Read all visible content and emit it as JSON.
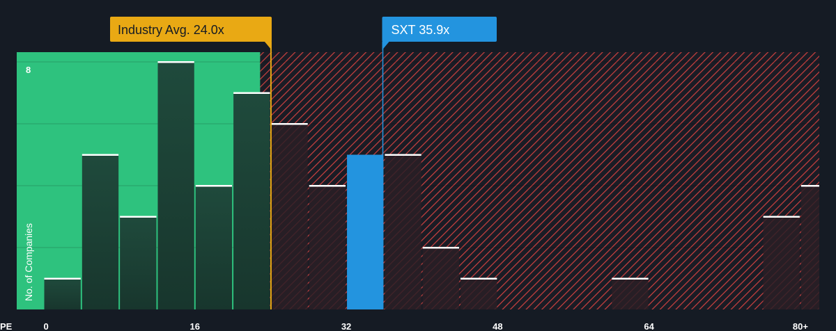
{
  "chart_data": {
    "type": "bar",
    "x_axis_prefix": "PE",
    "xlabel": "",
    "ylabel": "No. of Companies",
    "y_top_tick": "8",
    "ylim": [
      0,
      8.3
    ],
    "xlim": [
      0,
      82
    ],
    "x_ticks": [
      {
        "value": 0,
        "label": "0"
      },
      {
        "value": 16,
        "label": "16"
      },
      {
        "value": 32,
        "label": "32"
      },
      {
        "value": 48,
        "label": "48"
      },
      {
        "value": 64,
        "label": "64"
      },
      {
        "value": 80,
        "label": "80+"
      }
    ],
    "bins": [
      {
        "start": 0,
        "end": 4,
        "count": 1
      },
      {
        "start": 4,
        "end": 8,
        "count": 5
      },
      {
        "start": 8,
        "end": 12,
        "count": 3
      },
      {
        "start": 12,
        "end": 16,
        "count": 8
      },
      {
        "start": 16,
        "end": 20,
        "count": 4
      },
      {
        "start": 20,
        "end": 24,
        "count": 7
      },
      {
        "start": 24,
        "end": 28,
        "count": 6
      },
      {
        "start": 28,
        "end": 32,
        "count": 4
      },
      {
        "start": 32,
        "end": 36,
        "count": 5,
        "highlight": true
      },
      {
        "start": 36,
        "end": 40,
        "count": 5
      },
      {
        "start": 40,
        "end": 44,
        "count": 2
      },
      {
        "start": 44,
        "end": 48,
        "count": 1
      },
      {
        "start": 60,
        "end": 64,
        "count": 1
      },
      {
        "start": 76,
        "end": 80,
        "count": 3
      },
      {
        "start": 80,
        "end": 84,
        "count": 4
      }
    ],
    "industry_avg": {
      "value": 24.0,
      "label": "Industry Avg. 24.0x"
    },
    "company": {
      "value": 35.9,
      "label": "SXT 35.9x"
    },
    "colors": {
      "background": "#151b24",
      "undervalued_zone": "#2ec27e",
      "undervalued_bar": "#1f4a3c",
      "overvalued_hatch": "#c8403f",
      "overvalued_bar": "#2a1e26",
      "highlight_bar": "#2394df",
      "industry_marker": "#e9a914",
      "company_marker": "#2394df",
      "bar_cap": "#ffffff"
    }
  }
}
